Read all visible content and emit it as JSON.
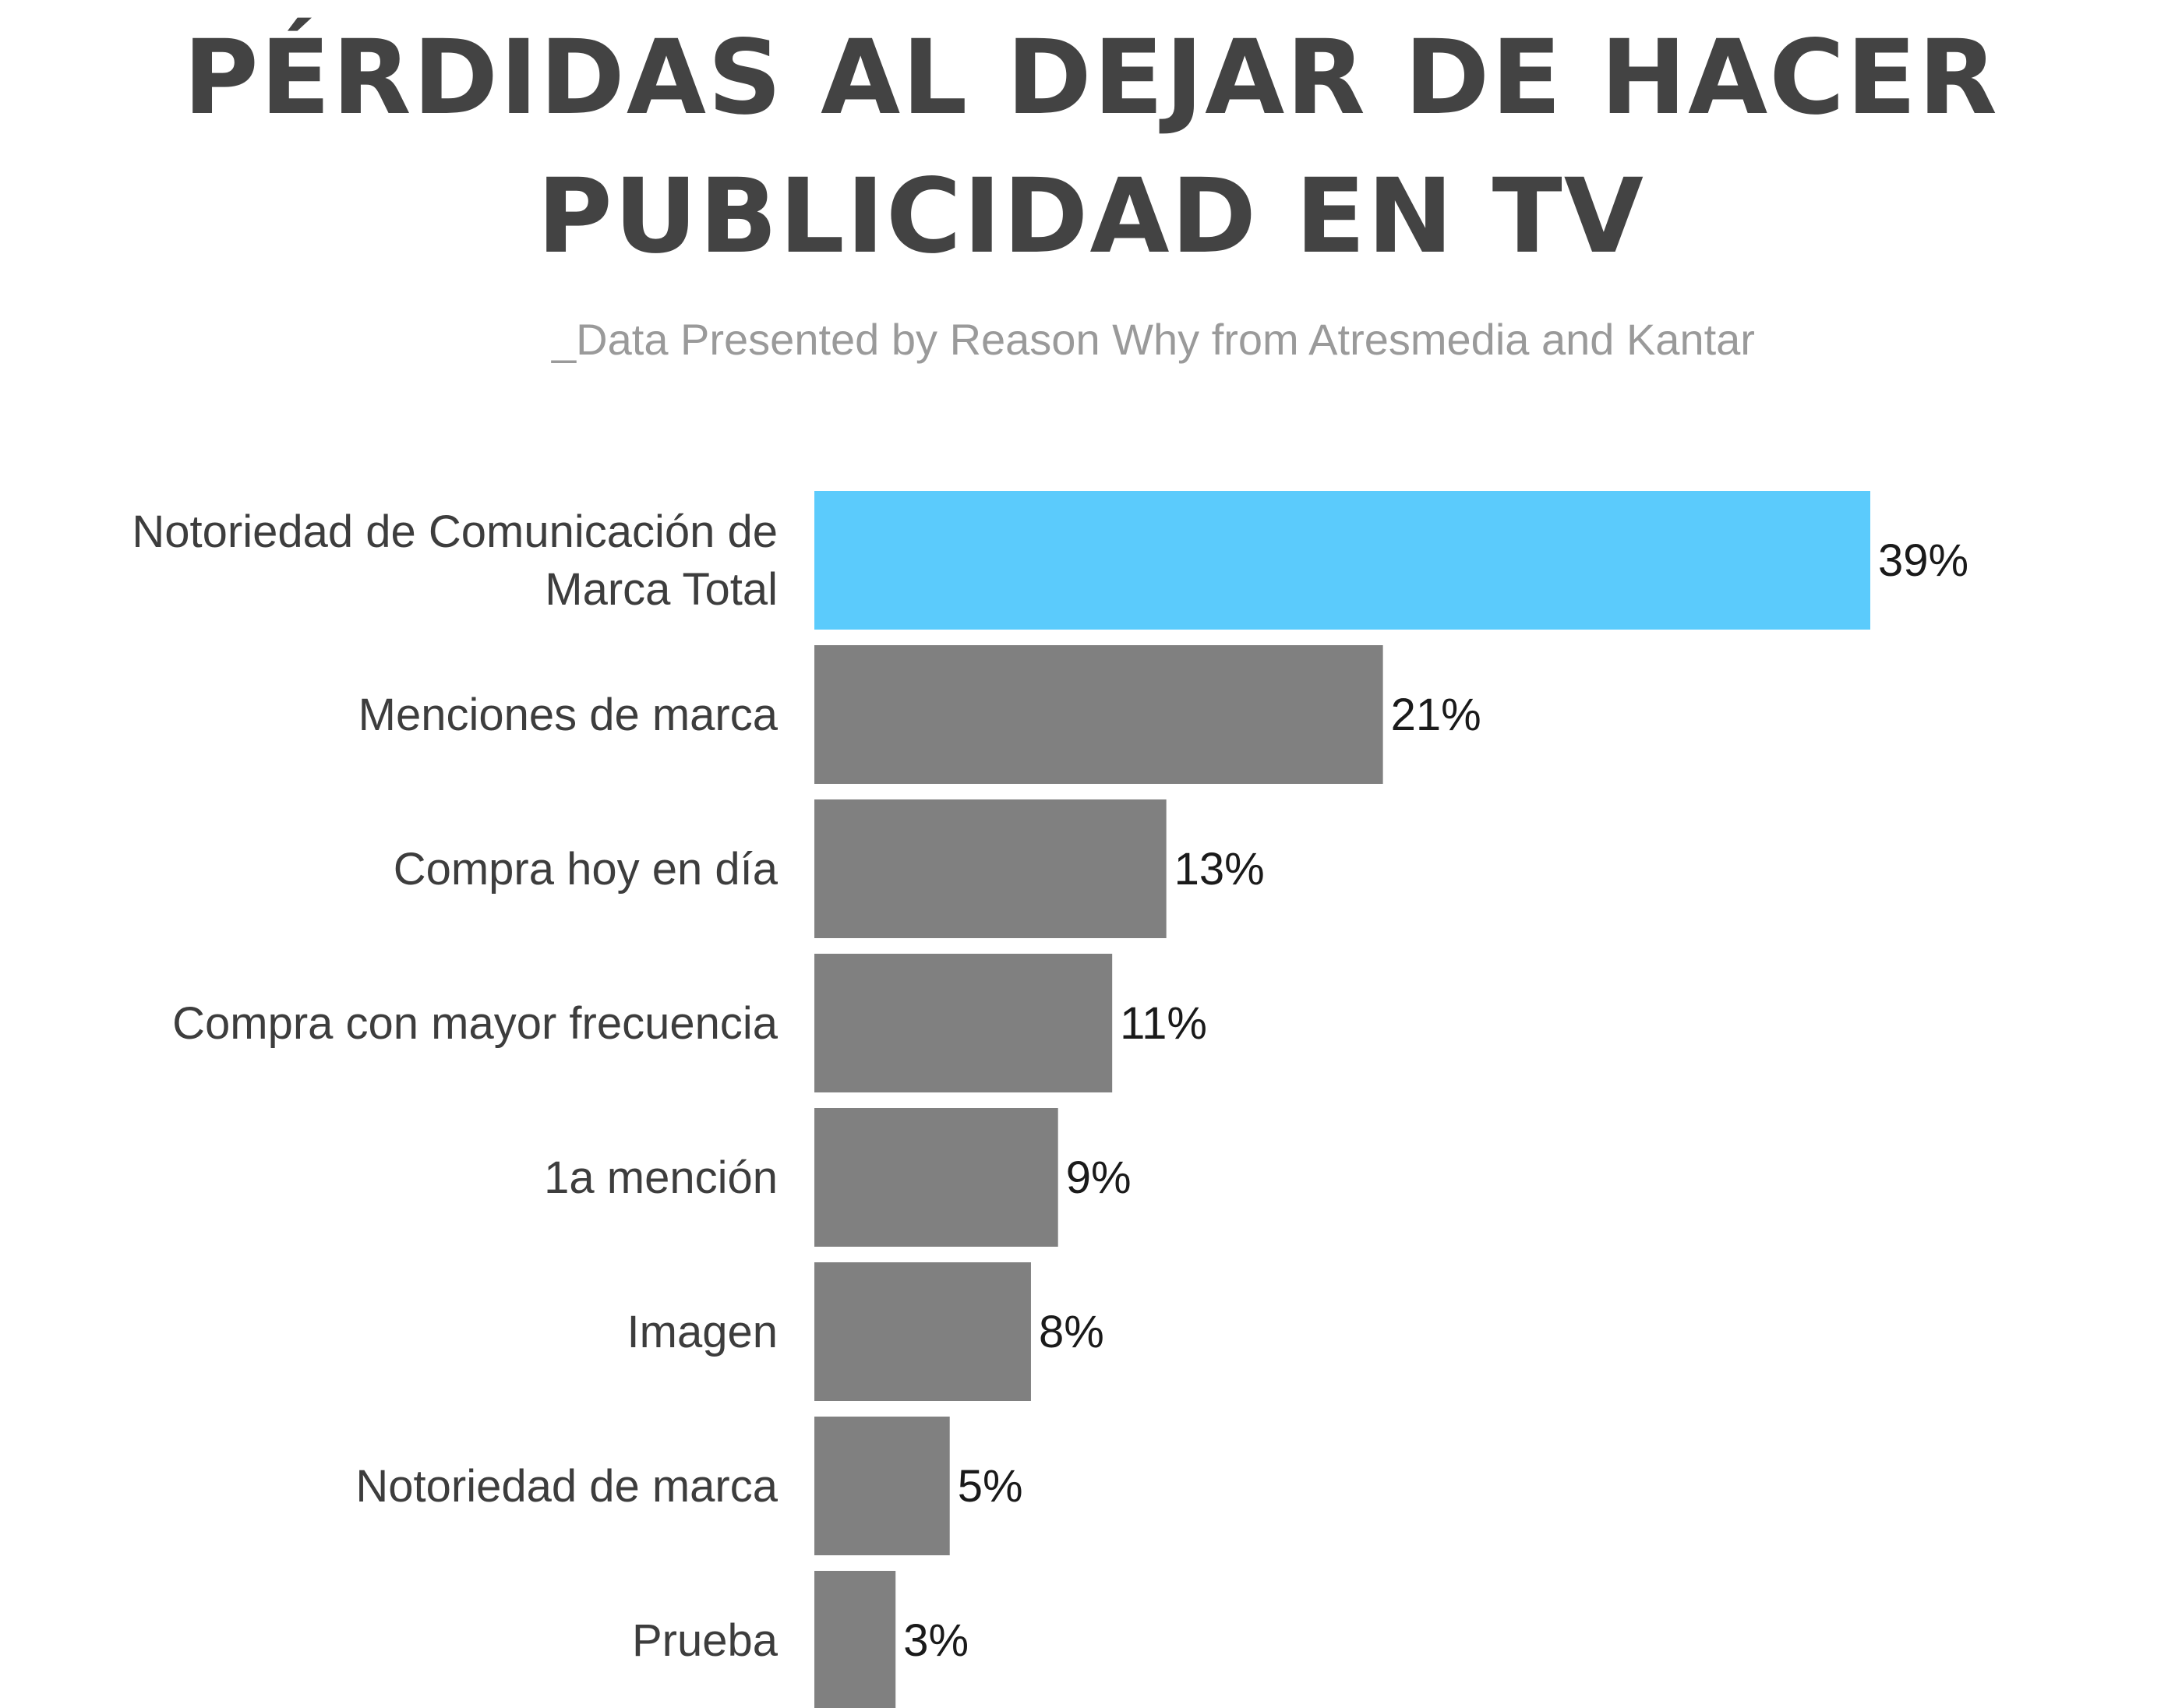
{
  "chart_data": {
    "type": "bar",
    "orientation": "horizontal",
    "title_lines": [
      "PÉRDIDAS AL DEJAR DE HACER",
      "PUBLICIDAD EN TV"
    ],
    "subtitle": "_Data Presented by Reason Why from Atresmedia and Kantar",
    "categories": [
      "Notoriedad de Comunicación de Marca Total",
      "Menciones de marca",
      "Compra hoy en día",
      "Compra con mayor frecuencia",
      "1a mención",
      "Imagen",
      "Notoriedad de marca",
      "Prueba"
    ],
    "category_label_lines": [
      [
        "Notoriedad de Comunicación de",
        "Marca Total"
      ],
      [
        "Menciones de marca"
      ],
      [
        "Compra hoy en día"
      ],
      [
        "Compra con mayor frecuencia"
      ],
      [
        "1a mención"
      ],
      [
        "Imagen"
      ],
      [
        "Notoriedad de marca"
      ],
      [
        "Prueba"
      ]
    ],
    "values": [
      39,
      21,
      13,
      11,
      9,
      8,
      5,
      3
    ],
    "value_labels": [
      "39%",
      "21%",
      "13%",
      "11%",
      "9%",
      "8%",
      "5%",
      "3%"
    ],
    "unit": "%",
    "xlim": [
      0,
      39
    ],
    "grid": false,
    "legend": "none",
    "colors": {
      "highlight": "#5bcbfc",
      "default": "#808080",
      "title": "#434343",
      "subtitle": "#9a9a9a",
      "category_text": "#3d3d3d",
      "value_text": "#1a1a1a"
    }
  }
}
